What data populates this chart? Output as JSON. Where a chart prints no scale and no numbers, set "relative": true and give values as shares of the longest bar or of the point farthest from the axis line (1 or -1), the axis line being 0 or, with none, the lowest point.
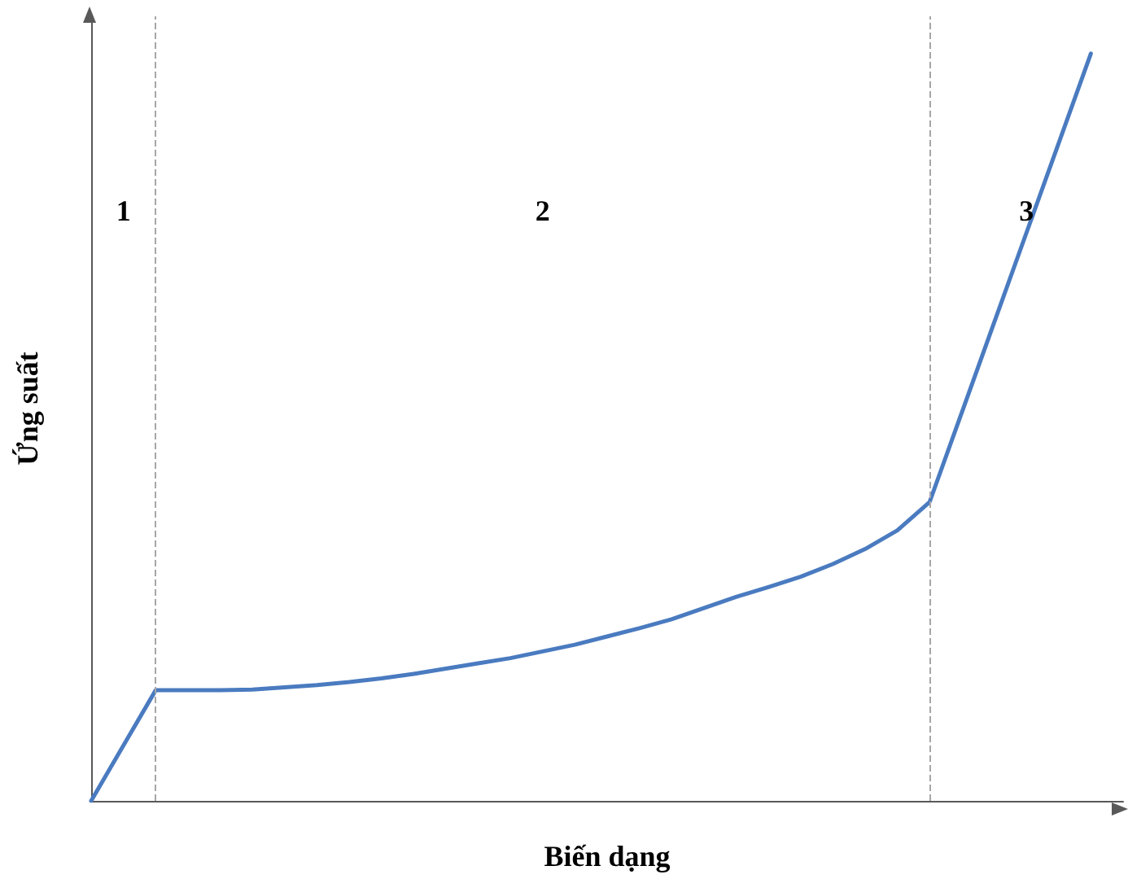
{
  "chart_data": {
    "type": "line",
    "relative": true,
    "xlabel": "Biến dạng",
    "ylabel": "Ứng suất",
    "categories": [
      null,
      null,
      null,
      null,
      null,
      null,
      null,
      null,
      null,
      null,
      null,
      null,
      null,
      null,
      null,
      null,
      null,
      null,
      null,
      null,
      null,
      null,
      null,
      null,
      null,
      null,
      null,
      null,
      null,
      null,
      null,
      null,
      null
    ],
    "series": [
      {
        "color": "#4a7bc0",
        "values": [
          0,
          0.074,
          0.148,
          0.148,
          0.148,
          0.149,
          0.152,
          0.155,
          0.159,
          0.164,
          0.17,
          0.177,
          0.184,
          0.191,
          0.2,
          0.209,
          0.22,
          0.231,
          0.243,
          0.258,
          0.273,
          0.286,
          0.3,
          0.317,
          0.337,
          0.362,
          0.4,
          0.52,
          0.64,
          0.76,
          0.88,
          1.0,
          null
        ]
      }
    ],
    "annotations": [
      "1",
      "2",
      "3"
    ],
    "grid": false,
    "marker": "none",
    "line_style": "solid"
  }
}
